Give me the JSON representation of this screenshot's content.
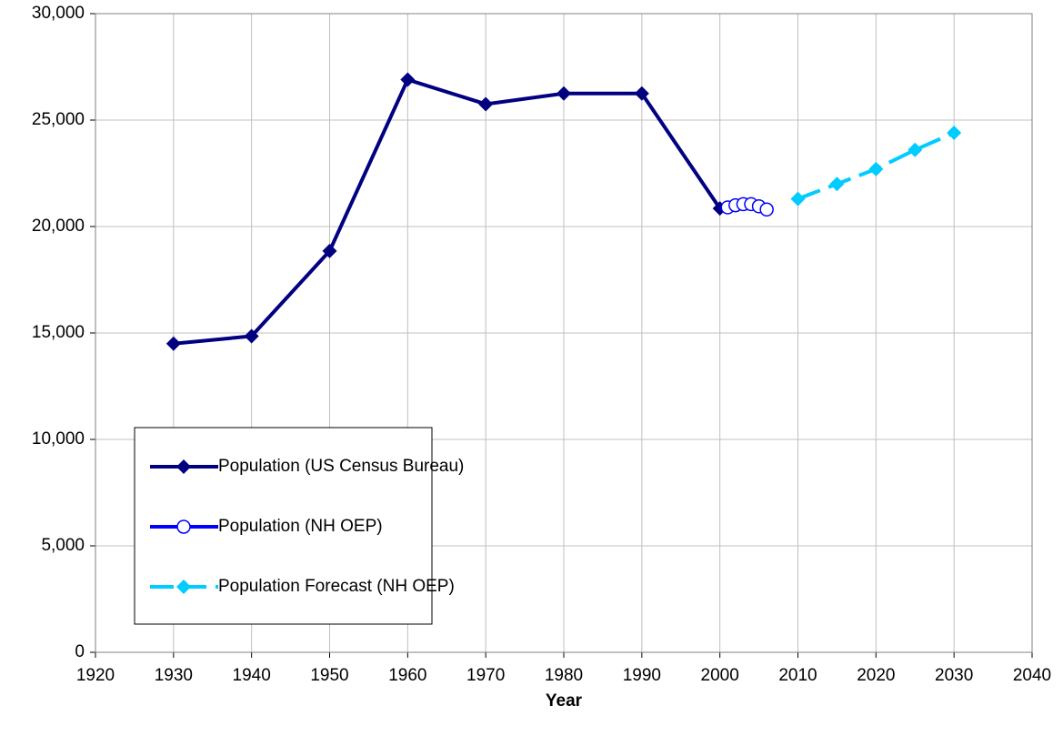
{
  "chart_data": {
    "type": "line",
    "x_label": "Year",
    "xlim": [
      1920,
      2040
    ],
    "xticks": [
      1920,
      1930,
      1940,
      1950,
      1960,
      1970,
      1980,
      1990,
      2000,
      2010,
      2020,
      2030,
      2040
    ],
    "ylim": [
      0,
      30000
    ],
    "yticks": [
      {
        "value": 0,
        "label": "0"
      },
      {
        "value": 5000,
        "label": "5,000"
      },
      {
        "value": 10000,
        "label": "10,000"
      },
      {
        "value": 15000,
        "label": "15,000"
      },
      {
        "value": 20000,
        "label": "20,000"
      },
      {
        "value": 25000,
        "label": "25,000"
      },
      {
        "value": 30000,
        "label": "30,000"
      }
    ],
    "grid": true,
    "legend": "lower left",
    "series": [
      {
        "name": "Population (US Census Bureau)",
        "color": "#000080",
        "marker": "diamond",
        "dashed": false,
        "x": [
          1930,
          1940,
          1950,
          1960,
          1970,
          1980,
          1990,
          2000
        ],
        "values": [
          14500,
          14850,
          18850,
          26900,
          25750,
          26250,
          26250,
          20850
        ]
      },
      {
        "name": "Population (NH OEP)",
        "color": "#0000ff",
        "marker": "circle",
        "dashed": false,
        "x": [
          2001,
          2002,
          2003,
          2004,
          2005,
          2006
        ],
        "values": [
          20900,
          21000,
          21050,
          21050,
          20950,
          20800
        ]
      },
      {
        "name": "Population Forecast (NH OEP)",
        "color": "#00ccff",
        "marker": "diamond",
        "dashed": true,
        "x": [
          2010,
          2015,
          2020,
          2025,
          2030
        ],
        "values": [
          21300,
          22000,
          22700,
          23600,
          24400
        ]
      }
    ]
  }
}
